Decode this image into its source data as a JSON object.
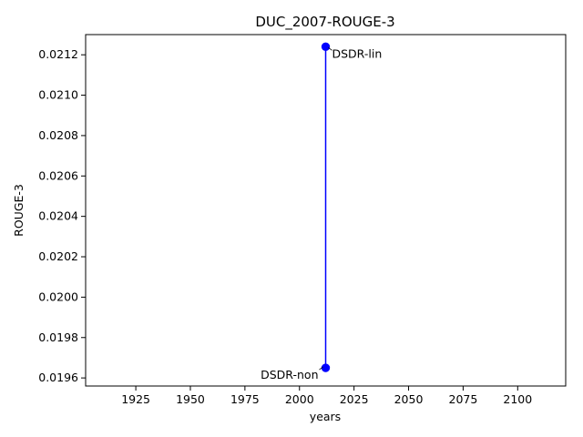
{
  "chart_data": {
    "type": "line",
    "title": "DUC_2007-ROUGE-3",
    "xlabel": "years",
    "ylabel": "ROUGE-3",
    "xlim": [
      1902,
      2122
    ],
    "ylim": [
      0.01956,
      0.0213
    ],
    "x_ticks": [
      1925,
      1950,
      1975,
      2000,
      2025,
      2050,
      2075,
      2100
    ],
    "y_ticks": [
      0.0196,
      0.0198,
      0.02,
      0.0202,
      0.0204,
      0.0206,
      0.0208,
      0.021,
      0.0212
    ],
    "y_tick_labels": [
      "0.0196",
      "0.0198",
      "0.0200",
      "0.0202",
      "0.0204",
      "0.0206",
      "0.0208",
      "0.0210",
      "0.0212"
    ],
    "grid": false,
    "series": [
      {
        "color": "#0000ff",
        "points": [
          {
            "x": 2012,
            "y": 0.02124,
            "label": "DSDR-lin",
            "label_side": "right"
          },
          {
            "x": 2012,
            "y": 0.01965,
            "label": "DSDR-non",
            "label_side": "left"
          }
        ]
      }
    ]
  }
}
